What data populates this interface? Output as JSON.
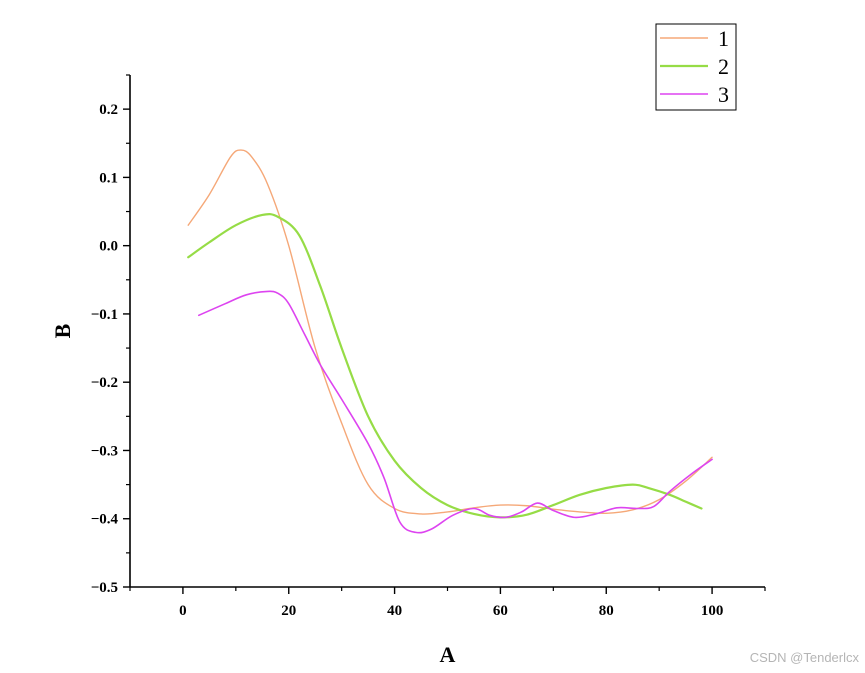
{
  "chart_data": {
    "type": "line",
    "xlabel": "A",
    "ylabel": "B",
    "xlim": [
      -10,
      110
    ],
    "ylim": [
      -0.5,
      0.25
    ],
    "x_ticks": [
      0,
      20,
      40,
      60,
      80,
      100
    ],
    "y_ticks": [
      -0.5,
      -0.4,
      -0.3,
      -0.2,
      -0.1,
      0.0,
      0.1,
      0.2
    ],
    "x_tick_labels": [
      "0",
      "20",
      "40",
      "60",
      "80",
      "100"
    ],
    "y_tick_labels": [
      "−0.5",
      "−0.4",
      "−0.3",
      "−0.2",
      "−0.1",
      "0.0",
      "0.1",
      "0.2"
    ],
    "grid": false,
    "legend_position": "top-right",
    "series": [
      {
        "name": "1",
        "color": "#f5a878",
        "points": [
          [
            1,
            0.03
          ],
          [
            5,
            0.075
          ],
          [
            9,
            0.13
          ],
          [
            11,
            0.14
          ],
          [
            13,
            0.13
          ],
          [
            16,
            0.09
          ],
          [
            20,
            0.0
          ],
          [
            25,
            -0.15
          ],
          [
            30,
            -0.26
          ],
          [
            35,
            -0.35
          ],
          [
            40,
            -0.385
          ],
          [
            45,
            -0.393
          ],
          [
            50,
            -0.39
          ],
          [
            55,
            -0.384
          ],
          [
            60,
            -0.38
          ],
          [
            65,
            -0.381
          ],
          [
            70,
            -0.386
          ],
          [
            75,
            -0.39
          ],
          [
            80,
            -0.392
          ],
          [
            85,
            -0.387
          ],
          [
            90,
            -0.372
          ],
          [
            95,
            -0.345
          ],
          [
            100,
            -0.31
          ]
        ]
      },
      {
        "name": "2",
        "color": "#96dc46",
        "points": [
          [
            1,
            -0.017
          ],
          [
            5,
            0.005
          ],
          [
            10,
            0.03
          ],
          [
            15,
            0.045
          ],
          [
            18,
            0.042
          ],
          [
            22,
            0.015
          ],
          [
            26,
            -0.06
          ],
          [
            30,
            -0.15
          ],
          [
            35,
            -0.25
          ],
          [
            40,
            -0.315
          ],
          [
            45,
            -0.355
          ],
          [
            50,
            -0.38
          ],
          [
            55,
            -0.393
          ],
          [
            60,
            -0.398
          ],
          [
            65,
            -0.394
          ],
          [
            70,
            -0.38
          ],
          [
            75,
            -0.365
          ],
          [
            80,
            -0.355
          ],
          [
            85,
            -0.35
          ],
          [
            88,
            -0.355
          ],
          [
            92,
            -0.365
          ],
          [
            95,
            -0.375
          ],
          [
            98,
            -0.385
          ]
        ]
      },
      {
        "name": "3",
        "color": "#dd44f0",
        "points": [
          [
            3,
            -0.102
          ],
          [
            8,
            -0.085
          ],
          [
            12,
            -0.072
          ],
          [
            16,
            -0.067
          ],
          [
            18,
            -0.07
          ],
          [
            20,
            -0.085
          ],
          [
            23,
            -0.13
          ],
          [
            26,
            -0.175
          ],
          [
            30,
            -0.225
          ],
          [
            35,
            -0.29
          ],
          [
            38,
            -0.34
          ],
          [
            41,
            -0.405
          ],
          [
            44,
            -0.42
          ],
          [
            47,
            -0.415
          ],
          [
            51,
            -0.395
          ],
          [
            55,
            -0.385
          ],
          [
            58,
            -0.395
          ],
          [
            61,
            -0.398
          ],
          [
            64,
            -0.39
          ],
          [
            67,
            -0.377
          ],
          [
            70,
            -0.388
          ],
          [
            74,
            -0.398
          ],
          [
            78,
            -0.393
          ],
          [
            82,
            -0.384
          ],
          [
            86,
            -0.385
          ],
          [
            89,
            -0.382
          ],
          [
            92,
            -0.36
          ],
          [
            96,
            -0.335
          ],
          [
            100,
            -0.313
          ]
        ]
      }
    ]
  },
  "watermark": "CSDN @Tenderlcx"
}
